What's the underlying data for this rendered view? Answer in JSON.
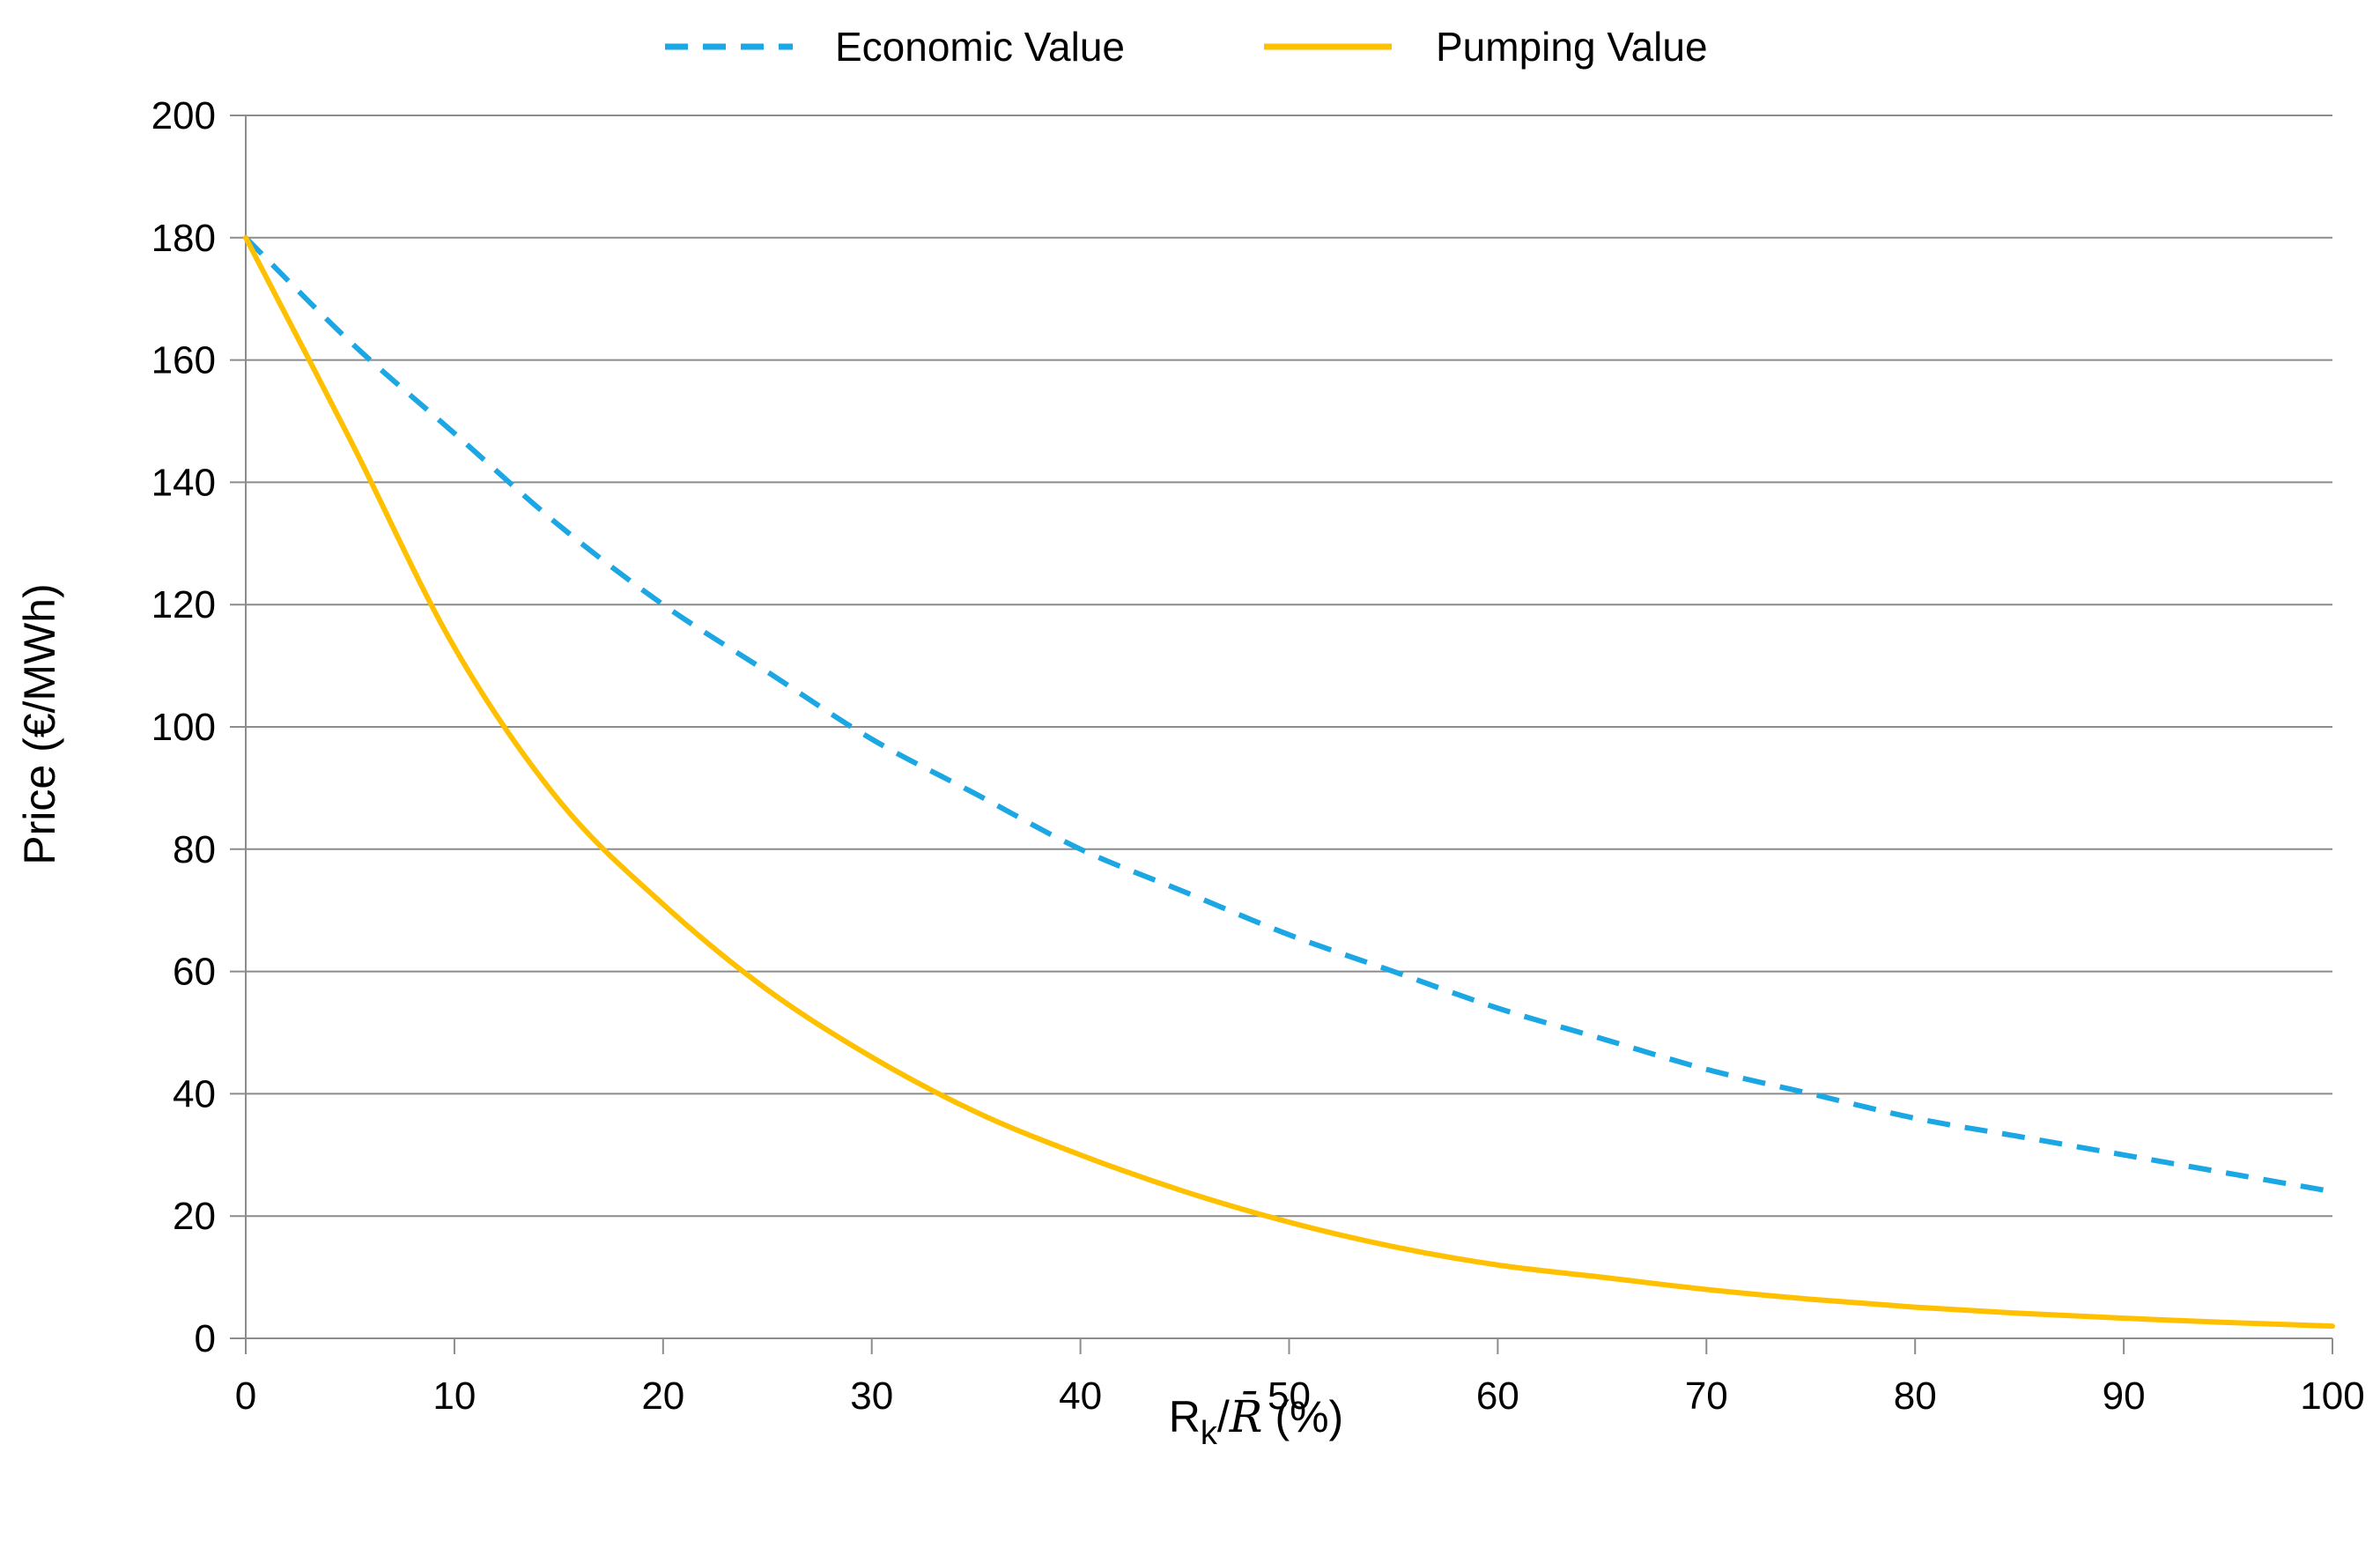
{
  "chart_data": {
    "type": "line",
    "title": "",
    "xlabel": {
      "prefix": "R",
      "subscript": "k",
      "slash": "/",
      "symbol": "R̄",
      "suffix": "(%)"
    },
    "ylabel": "Price (€/MWh)",
    "xlim": [
      0,
      100
    ],
    "ylim": [
      0,
      200
    ],
    "xticks": [
      0,
      10,
      20,
      30,
      40,
      50,
      60,
      70,
      80,
      90,
      100
    ],
    "yticks": [
      0,
      20,
      40,
      60,
      80,
      100,
      120,
      140,
      160,
      180,
      200
    ],
    "grid": "horizontal",
    "legend_position": "top-center",
    "series": [
      {
        "name": "Economic Value",
        "style": "dashed",
        "color": "#1aa7e4",
        "x": [
          0,
          5,
          10,
          15,
          20,
          25,
          30,
          35,
          40,
          45,
          50,
          55,
          60,
          65,
          70,
          75,
          80,
          85,
          90,
          95,
          100
        ],
        "y": [
          180,
          163,
          148,
          133,
          120,
          109,
          98,
          89,
          80,
          73,
          66,
          60,
          54,
          49,
          44,
          40,
          36,
          33,
          30,
          27,
          24
        ]
      },
      {
        "name": "Pumping Value",
        "style": "solid",
        "color": "#ffc000",
        "x": [
          0,
          5,
          10,
          15,
          20,
          25,
          30,
          35,
          40,
          45,
          50,
          55,
          60,
          65,
          70,
          75,
          80,
          85,
          90,
          95,
          100
        ],
        "y": [
          180,
          147,
          113,
          88,
          71,
          57,
          46,
          37,
          30,
          24,
          19,
          15,
          12,
          10,
          8,
          6.4,
          5.1,
          4.1,
          3.3,
          2.6,
          2
        ]
      }
    ]
  }
}
